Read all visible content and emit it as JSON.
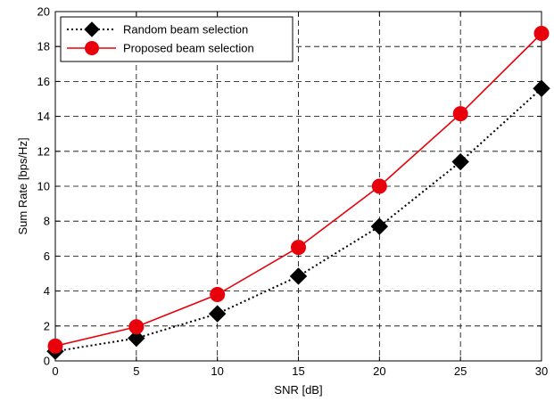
{
  "chart_data": {
    "type": "line",
    "title": "",
    "xlabel": "SNR [dB]",
    "ylabel": "Sum Rate [bps/Hz]",
    "x": [
      0,
      5,
      10,
      15,
      20,
      25,
      30
    ],
    "xlim": [
      0,
      30
    ],
    "ylim": [
      0,
      20
    ],
    "xticks": [
      "0",
      "5",
      "10",
      "15",
      "20",
      "25",
      "30"
    ],
    "yticks": [
      "0",
      "2",
      "4",
      "6",
      "8",
      "10",
      "12",
      "14",
      "16",
      "18",
      "20"
    ],
    "grid": true,
    "legend_position": "top-left",
    "series": [
      {
        "name": "Random beam selection",
        "values": [
          0.55,
          1.3,
          2.7,
          4.85,
          7.7,
          11.4,
          15.6
        ],
        "color": "#000000",
        "line_style": "dotted",
        "marker": "diamond"
      },
      {
        "name": "Proposed beam selection",
        "values": [
          0.85,
          1.95,
          3.8,
          6.5,
          10.0,
          14.15,
          18.75
        ],
        "color": "#e8000b",
        "line_style": "solid",
        "marker": "circle"
      }
    ]
  }
}
